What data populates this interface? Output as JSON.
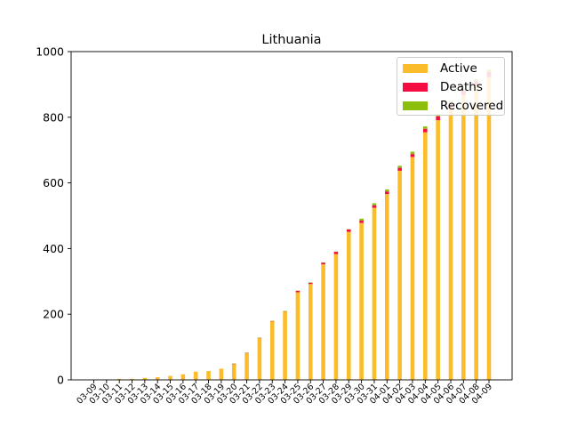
{
  "chart_data": {
    "type": "bar",
    "stacked": true,
    "title": "Lithuania",
    "xlabel": "",
    "ylabel": "",
    "ylim": [
      0,
      1000
    ],
    "yticks": [
      0,
      200,
      400,
      600,
      800,
      1000
    ],
    "grid": false,
    "legend_position": "top-right",
    "categories": [
      "03-09",
      "03-10",
      "03-11",
      "03-12",
      "03-13",
      "03-14",
      "03-15",
      "03-16",
      "03-17",
      "03-18",
      "03-19",
      "03-20",
      "03-21",
      "03-22",
      "03-23",
      "03-24",
      "03-25",
      "03-26",
      "03-27",
      "03-28",
      "03-29",
      "03-30",
      "03-31",
      "04-01",
      "04-02",
      "04-03",
      "04-04",
      "04-05",
      "04-06",
      "04-07",
      "04-08",
      "04-09"
    ],
    "series": [
      {
        "name": "Active",
        "color": "#fbbc2c",
        "values": [
          1,
          1,
          3,
          3,
          6,
          8,
          12,
          17,
          25,
          27,
          34,
          48,
          81,
          127,
          178,
          208,
          267,
          292,
          352,
          383,
          451,
          478,
          524,
          566,
          637,
          679,
          754,
          791,
          830,
          868,
          896,
          923
        ]
      },
      {
        "name": "Deaths",
        "color": "#f50c40",
        "values": [
          0,
          0,
          0,
          0,
          0,
          0,
          0,
          0,
          0,
          0,
          0,
          1,
          1,
          1,
          1,
          1,
          4,
          4,
          5,
          7,
          7,
          7,
          8,
          8,
          9,
          9,
          11,
          12,
          13,
          13,
          13,
          15
        ]
      },
      {
        "name": "Recovered",
        "color": "#8cbf0c",
        "values": [
          0,
          0,
          0,
          0,
          0,
          0,
          0,
          0,
          0,
          0,
          0,
          1,
          1,
          1,
          1,
          1,
          1,
          1,
          1,
          1,
          1,
          6,
          6,
          6,
          6,
          7,
          7,
          7,
          7,
          7,
          7,
          7
        ]
      }
    ]
  }
}
